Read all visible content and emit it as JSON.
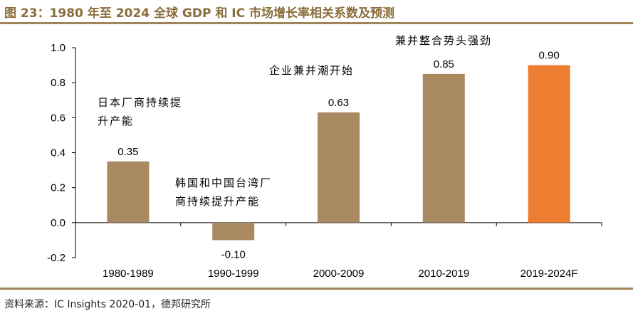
{
  "header": {
    "title": "图 23：1980 年至 2024 全球 GDP 和 IC 市场增长率相关系数及预测"
  },
  "footer": {
    "source": "资料来源：IC Insights 2020-01，德邦研究所"
  },
  "chart_data": {
    "type": "bar",
    "title": "图 23：1980 年至 2024 全球 GDP 和 IC 市场增长率相关系数及预测",
    "xlabel": "",
    "ylabel": "",
    "categories": [
      "1980-1989",
      "1990-1999",
      "2000-2009",
      "2010-2019",
      "2019-2024F"
    ],
    "values": [
      0.35,
      -0.1,
      0.63,
      0.85,
      0.9
    ],
    "value_labels": [
      "0.35",
      "-0.10",
      "0.63",
      "0.85",
      "0.90"
    ],
    "bar_colors": [
      "#a88960",
      "#a88960",
      "#a88960",
      "#a88960",
      "#ed7d31"
    ],
    "ylim": [
      -0.2,
      1.0
    ],
    "yticks": [
      -0.2,
      0.0,
      0.2,
      0.4,
      0.6,
      0.8,
      1.0
    ],
    "ytick_labels": [
      "-0.2",
      "0.0",
      "0.2",
      "0.4",
      "0.6",
      "0.8",
      "1.0"
    ],
    "grid": false,
    "annotations": [
      {
        "category": "1980-1989",
        "lines": [
          "日本厂商持续提",
          "升产能"
        ]
      },
      {
        "category": "1990-1999",
        "lines": [
          "韩国和中国台湾厂",
          "商持续提升产能"
        ]
      },
      {
        "category": "2000-2009",
        "lines": [
          "企业兼并潮开始"
        ]
      },
      {
        "category": "2010-2019",
        "lines": [
          "兼并整合势头强劲"
        ]
      }
    ]
  }
}
